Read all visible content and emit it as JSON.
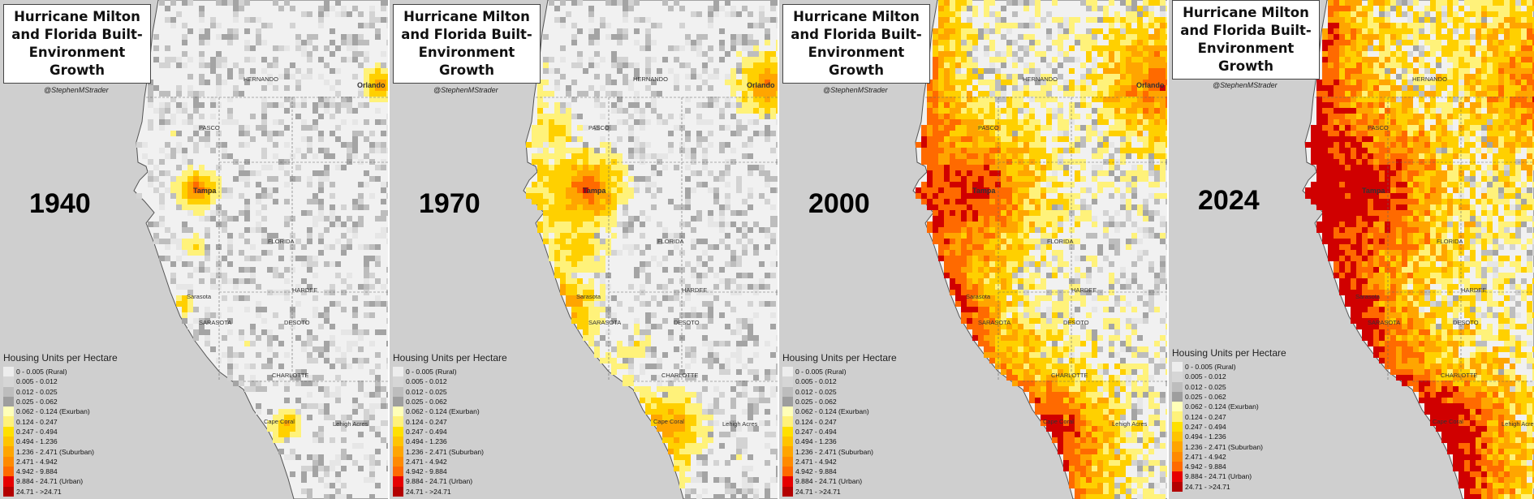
{
  "title": "Hurricane Milton and Florida Built-Environment Growth",
  "handle": "@StephenMStrader",
  "legend": {
    "title": "Housing Units per Hectare",
    "classes": [
      {
        "label": "0 - 0.005 (Rural)",
        "color": "#ededed"
      },
      {
        "label": "0.005 - 0.012",
        "color": "#d6d6d6"
      },
      {
        "label": "0.012 - 0.025",
        "color": "#bdbdbd"
      },
      {
        "label": "0.025 - 0.062",
        "color": "#9e9e9e"
      },
      {
        "label": "0.062 - 0.124 (Exurban)",
        "color": "#ffffb8"
      },
      {
        "label": "0.124 - 0.247",
        "color": "#fff27a"
      },
      {
        "label": "0.247 - 0.494",
        "color": "#ffe000"
      },
      {
        "label": "0.494 - 1.236",
        "color": "#ffc400"
      },
      {
        "label": "1.236 - 2.471 (Suburban)",
        "color": "#ffa500"
      },
      {
        "label": "2.471 - 4.942",
        "color": "#ff8a00"
      },
      {
        "label": "4.942 - 9.884",
        "color": "#ff6a00"
      },
      {
        "label": "9.884 - 24.71 (Urban)",
        "color": "#e60000"
      },
      {
        "label": "24.71 - >24.71",
        "color": "#b30000"
      }
    ]
  },
  "place_labels": [
    "Orlando",
    "Tampa",
    "FLORIDA",
    "SARASOTA",
    "HARDEE",
    "DESOTO",
    "CHARLOTTE",
    "Cape Coral",
    "PASCO",
    "HERNANDO",
    "Sarasota",
    "Lehigh Acres"
  ],
  "panels": [
    {
      "year": "1940",
      "intensity": 0.12
    },
    {
      "year": "1970",
      "intensity": 0.32
    },
    {
      "year": "2000",
      "intensity": 0.68
    },
    {
      "year": "2024",
      "intensity": 0.9
    }
  ]
}
